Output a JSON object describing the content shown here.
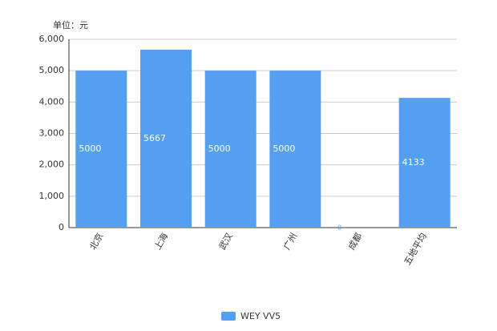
{
  "chart_data": {
    "type": "bar",
    "unit_label": "单位：元",
    "categories": [
      "北京",
      "上海",
      "武汉",
      "广州",
      "成都",
      "五地平均"
    ],
    "series": [
      {
        "name": "WEY VV5",
        "color": "#559ff0",
        "values": [
          5000,
          5667,
          5000,
          5000,
          0,
          4133
        ]
      }
    ],
    "ylim": [
      0,
      6000
    ],
    "yticks": [
      0,
      {
        "value": 1000,
        "label": "1,000"
      },
      {
        "value": 2000,
        "label": "2,000"
      },
      {
        "value": 3000,
        "label": "3,000"
      },
      {
        "value": 4000,
        "label": "4,000"
      },
      {
        "value": 5000,
        "label": "5,000"
      },
      {
        "value": 6000,
        "label": "6,000"
      }
    ],
    "grid": true,
    "legend": "bottom"
  }
}
